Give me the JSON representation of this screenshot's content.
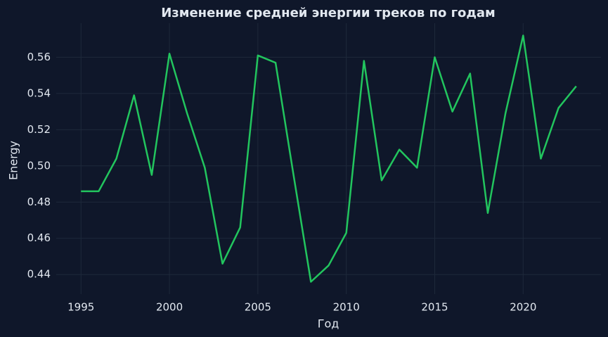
{
  "chart_data": {
    "type": "line",
    "title": "Изменение средней энергии треков по годам",
    "x_label": "Год",
    "y_label": "Energy",
    "x": [
      1995,
      1996,
      1997,
      1998,
      1999,
      2000,
      2001,
      2002,
      2003,
      2004,
      2005,
      2006,
      2007,
      2008,
      2009,
      2010,
      2011,
      2012,
      2013,
      2014,
      2015,
      2016,
      2017,
      2018,
      2019,
      2020,
      2021,
      2022,
      2023
    ],
    "series": [
      {
        "name": "Energy",
        "color": "#22c55e",
        "values": [
          0.486,
          0.486,
          0.504,
          0.539,
          0.495,
          0.562,
          0.529,
          0.499,
          0.446,
          0.466,
          0.561,
          0.557,
          0.496,
          0.436,
          0.445,
          0.463,
          0.558,
          0.492,
          0.509,
          0.499,
          0.56,
          0.53,
          0.551,
          0.474,
          0.529,
          0.572,
          0.504,
          0.532,
          0.544
        ]
      }
    ],
    "xlim": [
      1993.6,
      2024.4
    ],
    "xticks": [
      1995,
      2000,
      2005,
      2010,
      2015,
      2020
    ],
    "ylim": [
      0.4292,
      0.5788
    ],
    "yticks": [
      {
        "value": 0.44,
        "label": "0.44"
      },
      {
        "value": 0.46,
        "label": "0.46"
      },
      {
        "value": 0.48,
        "label": "0.48"
      },
      {
        "value": 0.5,
        "label": "0.50"
      },
      {
        "value": 0.52,
        "label": "0.52"
      },
      {
        "value": 0.54,
        "label": "0.54"
      },
      {
        "value": 0.56,
        "label": "0.56"
      }
    ],
    "grid": true
  }
}
